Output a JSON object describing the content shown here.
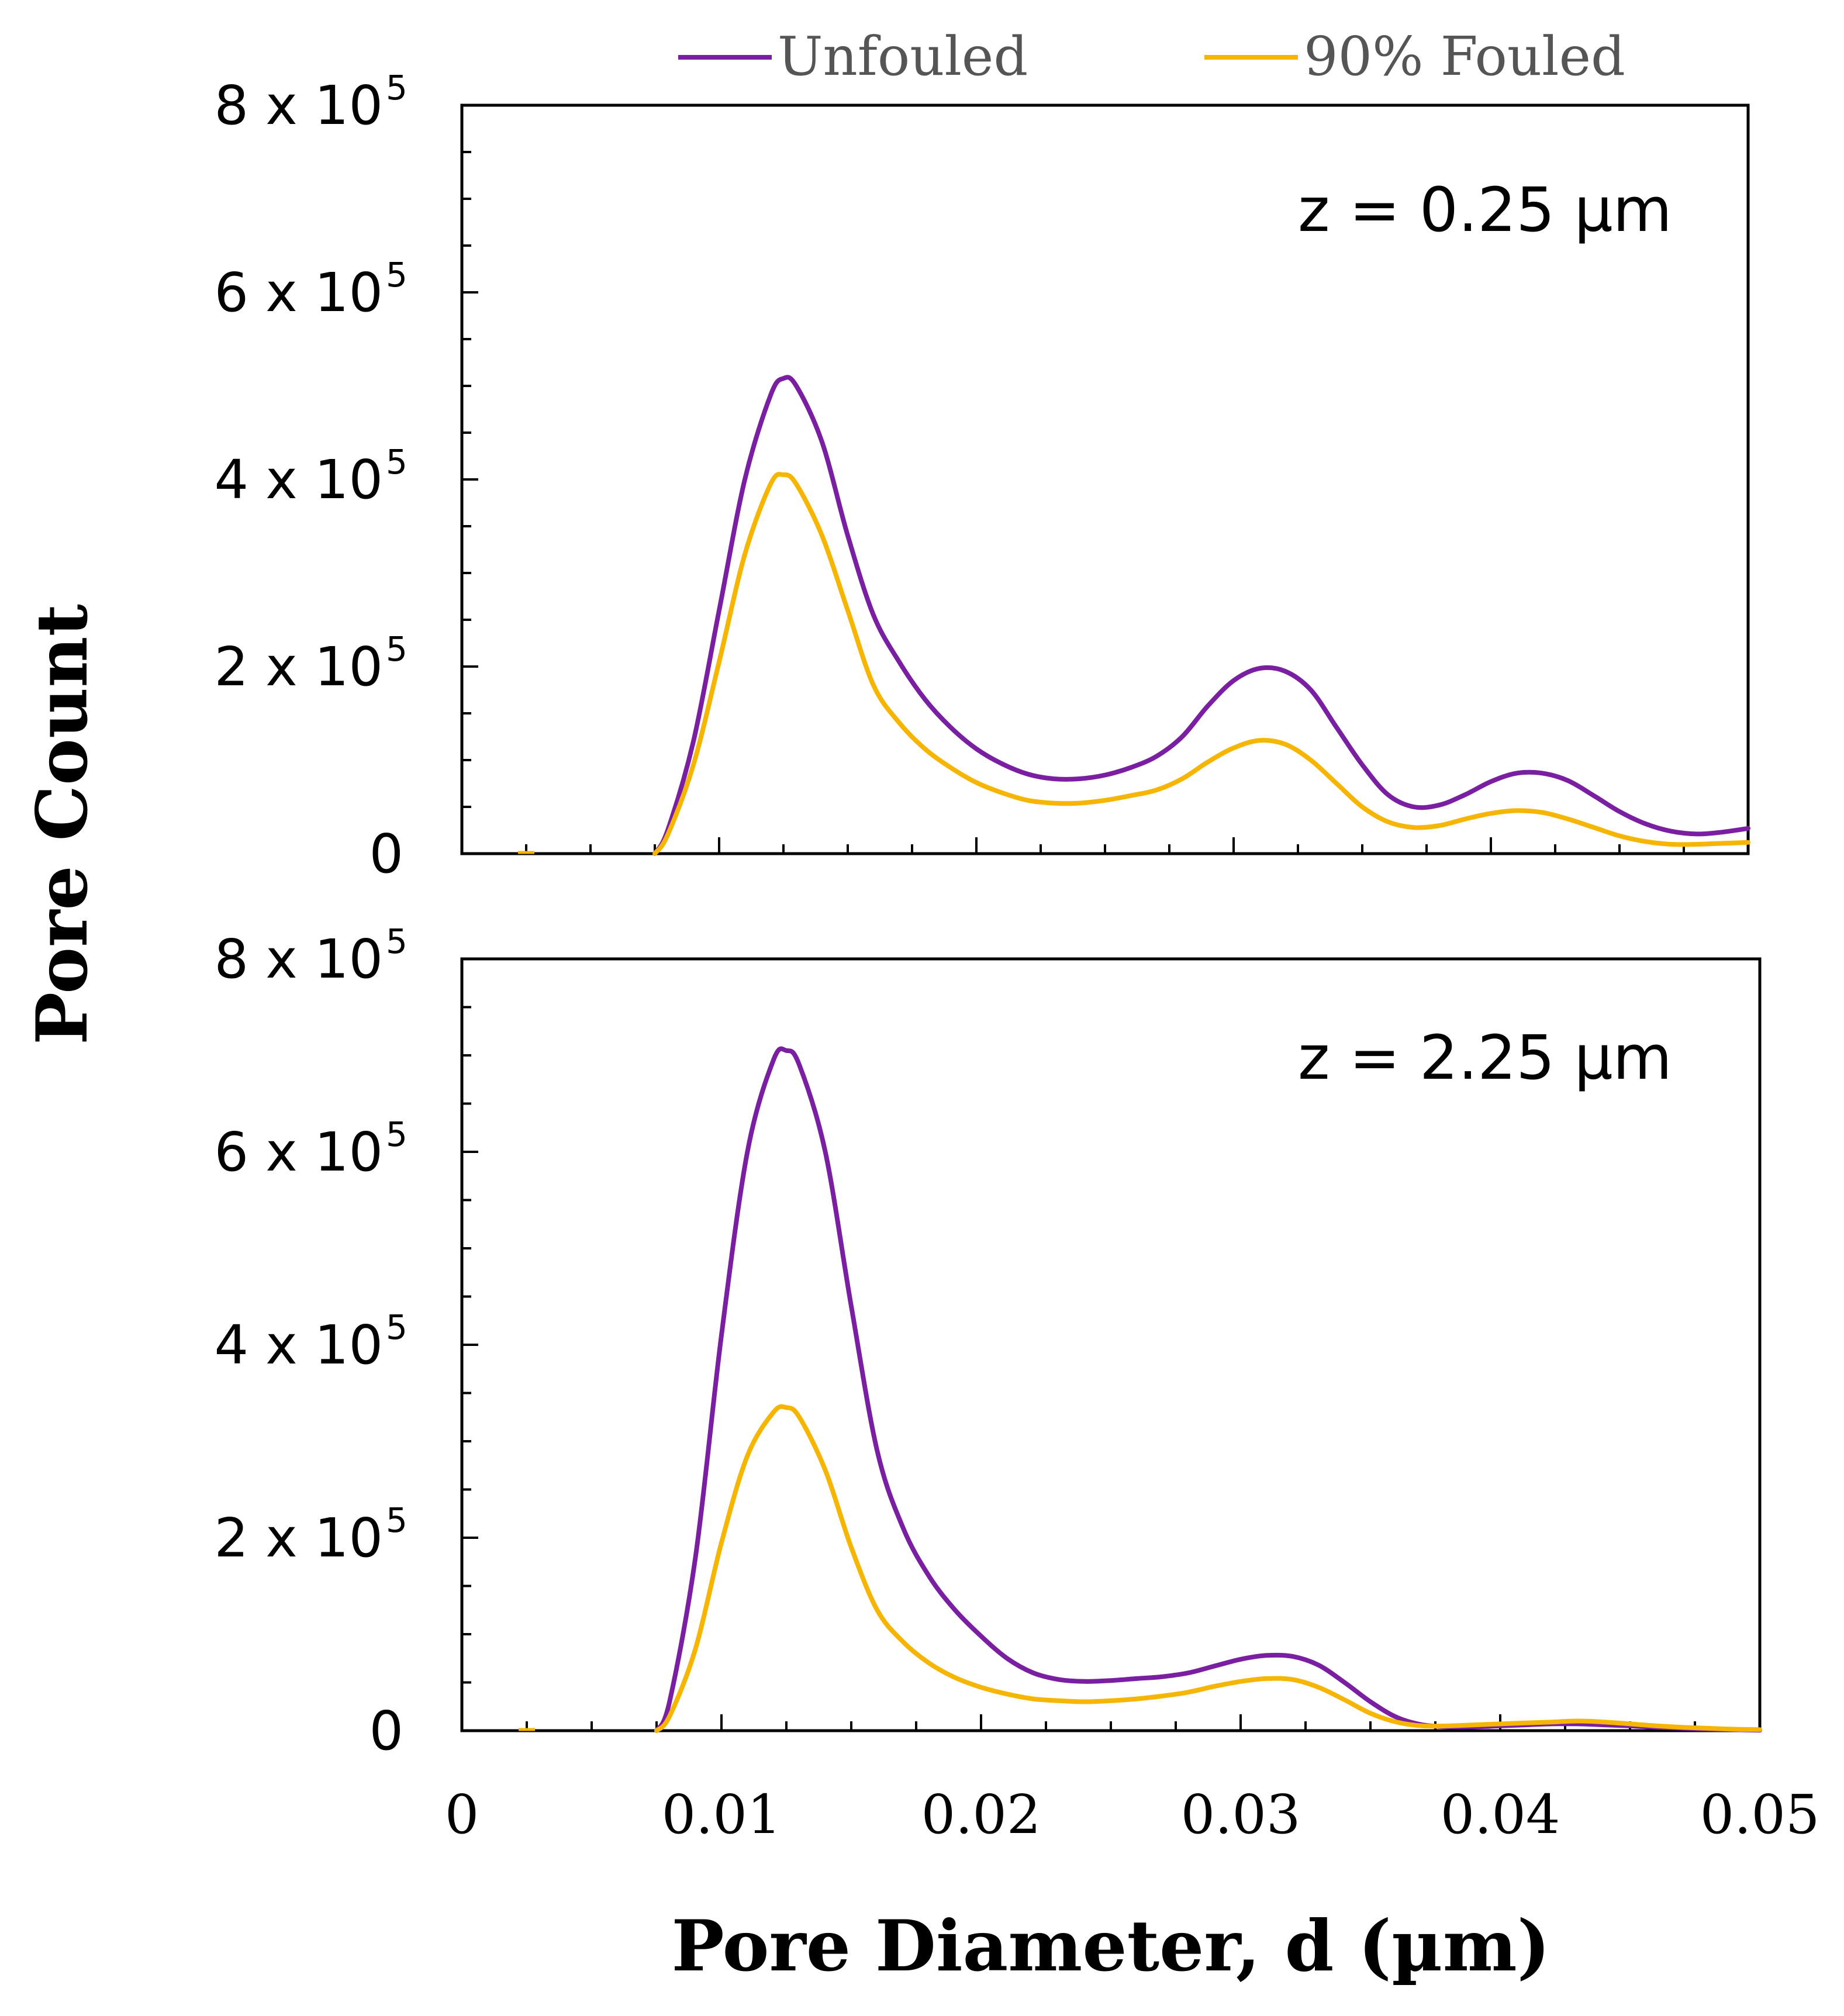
{
  "chart_data": [
    {
      "type": "line",
      "annotation": "z = 0.25 µm",
      "xlim": [
        0,
        0.05
      ],
      "ylim": [
        0,
        800000
      ],
      "yticks": [
        {
          "value": 0,
          "label": "0",
          "exp": ""
        },
        {
          "value": 200000,
          "label": "2 x 10",
          "exp": "5"
        },
        {
          "value": 400000,
          "label": "4 x 10",
          "exp": "5"
        },
        {
          "value": 600000,
          "label": "6 x 10",
          "exp": "5"
        },
        {
          "value": 800000,
          "label": "8 x 10",
          "exp": "5"
        }
      ],
      "series": [
        {
          "name": "Unfouled",
          "color": "#7a1fa2",
          "x": [
            0.0075,
            0.008,
            0.009,
            0.01,
            0.011,
            0.012,
            0.0125,
            0.013,
            0.014,
            0.015,
            0.016,
            0.017,
            0.018,
            0.019,
            0.02,
            0.021,
            0.022,
            0.023,
            0.024,
            0.025,
            0.026,
            0.027,
            0.028,
            0.029,
            0.03,
            0.031,
            0.032,
            0.033,
            0.034,
            0.035,
            0.036,
            0.037,
            0.038,
            0.039,
            0.04,
            0.041,
            0.042,
            0.043,
            0.044,
            0.045,
            0.046,
            0.047,
            0.048,
            0.049,
            0.05
          ],
          "y": [
            0,
            25000,
            120000,
            260000,
            400000,
            490000,
            508000,
            500000,
            440000,
            340000,
            255000,
            205000,
            165000,
            135000,
            112000,
            96000,
            85000,
            80000,
            80000,
            84000,
            92000,
            104000,
            125000,
            158000,
            185000,
            198000,
            195000,
            175000,
            135000,
            95000,
            63000,
            50000,
            52000,
            63000,
            77000,
            86000,
            86000,
            78000,
            62000,
            45000,
            32000,
            24000,
            21000,
            23000,
            27000
          ]
        },
        {
          "name": "90% Fouled",
          "color": "#f5b500",
          "x": [
            0.0075,
            0.008,
            0.009,
            0.01,
            0.011,
            0.012,
            0.0125,
            0.013,
            0.014,
            0.015,
            0.016,
            0.017,
            0.018,
            0.019,
            0.02,
            0.021,
            0.022,
            0.023,
            0.024,
            0.025,
            0.026,
            0.027,
            0.028,
            0.029,
            0.03,
            0.031,
            0.032,
            0.033,
            0.034,
            0.035,
            0.036,
            0.037,
            0.038,
            0.039,
            0.04,
            0.041,
            0.042,
            0.043,
            0.044,
            0.045,
            0.046,
            0.047,
            0.048,
            0.049,
            0.05
          ],
          "y": [
            0,
            20000,
            95000,
            205000,
            320000,
            395000,
            405000,
            395000,
            340000,
            260000,
            180000,
            140000,
            112000,
            92000,
            76000,
            65000,
            57000,
            54000,
            54000,
            57000,
            62000,
            68000,
            80000,
            98000,
            113000,
            121000,
            117000,
            100000,
            75000,
            50000,
            34000,
            28000,
            30000,
            37000,
            43000,
            46000,
            44000,
            37000,
            28000,
            19000,
            13000,
            10000,
            10000,
            11000,
            12000
          ]
        }
      ],
      "extra_points": [
        {
          "x": 0.0025,
          "y": 0
        }
      ]
    },
    {
      "type": "line",
      "annotation": "z = 2.25 µm",
      "xlim": [
        0,
        0.05
      ],
      "ylim": [
        0,
        800000
      ],
      "xlabel": "Pore Diameter, d (µm)",
      "xticks": [
        {
          "value": 0,
          "label": "0"
        },
        {
          "value": 0.01,
          "label": "0.01"
        },
        {
          "value": 0.02,
          "label": "0.02"
        },
        {
          "value": 0.03,
          "label": "0.03"
        },
        {
          "value": 0.04,
          "label": "0.04"
        },
        {
          "value": 0.05,
          "label": "0.05"
        }
      ],
      "yticks": [
        {
          "value": 0,
          "label": "0",
          "exp": ""
        },
        {
          "value": 200000,
          "label": "2 x 10",
          "exp": "5"
        },
        {
          "value": 400000,
          "label": "4 x 10",
          "exp": "5"
        },
        {
          "value": 600000,
          "label": "6 x 10",
          "exp": "5"
        },
        {
          "value": 800000,
          "label": "8 x 10",
          "exp": "5"
        }
      ],
      "series": [
        {
          "name": "Unfouled",
          "color": "#7a1fa2",
          "x": [
            0.0075,
            0.008,
            0.009,
            0.01,
            0.011,
            0.012,
            0.0125,
            0.013,
            0.014,
            0.015,
            0.016,
            0.017,
            0.018,
            0.019,
            0.02,
            0.021,
            0.022,
            0.023,
            0.024,
            0.025,
            0.026,
            0.027,
            0.028,
            0.029,
            0.03,
            0.031,
            0.032,
            0.033,
            0.034,
            0.035,
            0.036,
            0.037,
            0.038,
            0.039,
            0.04,
            0.041,
            0.042,
            0.043,
            0.044,
            0.045,
            0.046,
            0.047,
            0.048,
            0.049,
            0.05
          ],
          "y": [
            0,
            30000,
            180000,
            410000,
            600000,
            695000,
            705000,
            690000,
            600000,
            440000,
            290000,
            210000,
            160000,
            125000,
            98000,
            75000,
            60000,
            53000,
            51000,
            52000,
            54000,
            56000,
            60000,
            67000,
            74000,
            78000,
            77000,
            68000,
            50000,
            30000,
            14000,
            6000,
            4000,
            4000,
            5000,
            6000,
            7000,
            7000,
            6000,
            5000,
            3500,
            2500,
            1500,
            1000,
            500
          ]
        },
        {
          "name": "90% Fouled",
          "color": "#f5b500",
          "x": [
            0.0075,
            0.008,
            0.009,
            0.01,
            0.011,
            0.012,
            0.0125,
            0.013,
            0.014,
            0.015,
            0.016,
            0.017,
            0.018,
            0.019,
            0.02,
            0.021,
            0.022,
            0.023,
            0.024,
            0.025,
            0.026,
            0.027,
            0.028,
            0.029,
            0.03,
            0.031,
            0.032,
            0.033,
            0.034,
            0.035,
            0.036,
            0.037,
            0.038,
            0.039,
            0.04,
            0.041,
            0.042,
            0.043,
            0.044,
            0.045,
            0.046,
            0.047,
            0.048,
            0.049,
            0.05
          ],
          "y": [
            0,
            15000,
            85000,
            195000,
            285000,
            330000,
            335000,
            325000,
            270000,
            190000,
            125000,
            92000,
            70000,
            55000,
            45000,
            38000,
            33000,
            31000,
            30000,
            31000,
            33000,
            36000,
            40000,
            46000,
            51000,
            54000,
            53000,
            45000,
            32000,
            18000,
            9000,
            5000,
            5000,
            6000,
            7000,
            8000,
            9000,
            10000,
            9000,
            7000,
            5000,
            3500,
            2500,
            1500,
            1000
          ]
        }
      ],
      "extra_points": [
        {
          "x": 0.0025,
          "y": 0
        }
      ]
    }
  ],
  "ylabel": "Pore Count",
  "legend": [
    {
      "label": "Unfouled",
      "color": "#7a1fa2"
    },
    {
      "label": "90% Fouled",
      "color": "#f5b500"
    }
  ]
}
